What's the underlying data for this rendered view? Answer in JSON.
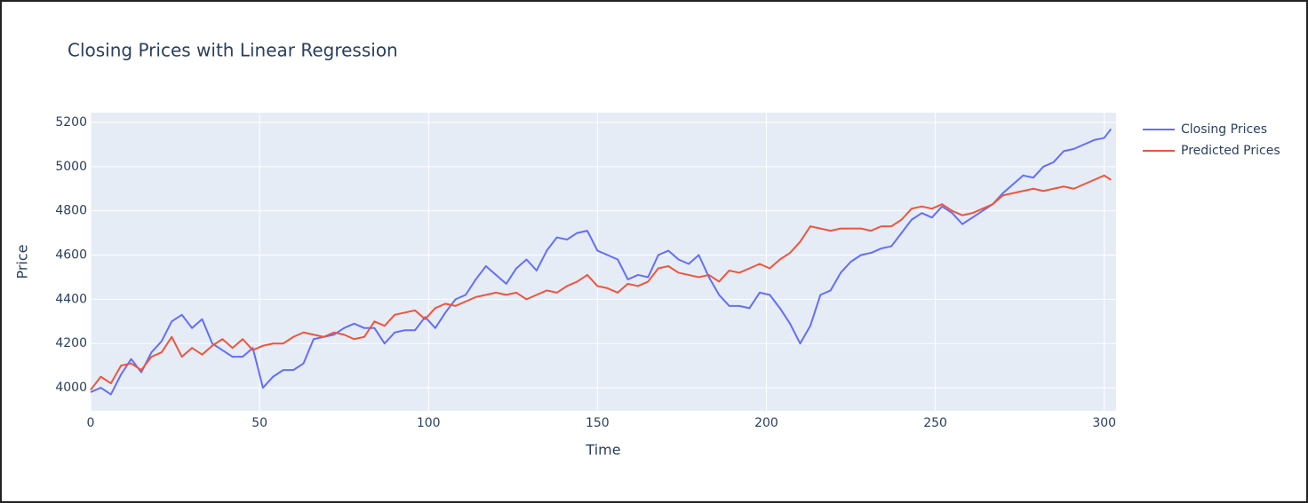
{
  "chart_data": {
    "type": "line",
    "title": "Closing Prices with Linear Regression",
    "x_label": "Time",
    "y_label": "Price",
    "x": [
      0,
      3,
      6,
      9,
      12,
      15,
      18,
      21,
      24,
      27,
      30,
      33,
      36,
      39,
      42,
      45,
      48,
      51,
      54,
      57,
      60,
      63,
      66,
      69,
      72,
      75,
      78,
      81,
      84,
      87,
      90,
      93,
      96,
      99,
      102,
      105,
      108,
      111,
      114,
      117,
      120,
      123,
      126,
      129,
      132,
      135,
      138,
      141,
      144,
      147,
      150,
      153,
      156,
      159,
      162,
      165,
      168,
      171,
      174,
      177,
      180,
      183,
      186,
      189,
      192,
      195,
      198,
      201,
      204,
      207,
      210,
      213,
      216,
      219,
      222,
      225,
      228,
      231,
      234,
      237,
      240,
      243,
      246,
      249,
      252,
      255,
      258,
      261,
      264,
      267,
      270,
      273,
      276,
      279,
      282,
      285,
      288,
      291,
      294,
      297,
      300,
      302
    ],
    "series": [
      {
        "name": "Closing Prices",
        "color": "#636efa",
        "values": [
          3980,
          4000,
          3970,
          4060,
          4130,
          4070,
          4160,
          4210,
          4300,
          4330,
          4270,
          4310,
          4200,
          4170,
          4140,
          4140,
          4180,
          4000,
          4050,
          4080,
          4080,
          4110,
          4220,
          4230,
          4240,
          4270,
          4290,
          4270,
          4270,
          4200,
          4250,
          4260,
          4260,
          4320,
          4270,
          4340,
          4400,
          4420,
          4490,
          4550,
          4510,
          4470,
          4540,
          4580,
          4530,
          4620,
          4680,
          4670,
          4700,
          4710,
          4620,
          4600,
          4580,
          4490,
          4510,
          4500,
          4600,
          4620,
          4580,
          4560,
          4600,
          4500,
          4420,
          4370,
          4370,
          4360,
          4430,
          4420,
          4360,
          4290,
          4200,
          4280,
          4420,
          4440,
          4520,
          4570,
          4600,
          4610,
          4630,
          4640,
          4700,
          4760,
          4790,
          4770,
          4820,
          4790,
          4740,
          4770,
          4800,
          4830,
          4880,
          4920,
          4960,
          4950,
          5000,
          5020,
          5070,
          5080,
          5100,
          5120,
          5130,
          5170
        ]
      },
      {
        "name": "Predicted Prices",
        "color": "#ef553b",
        "values": [
          3990,
          4050,
          4020,
          4100,
          4110,
          4080,
          4140,
          4160,
          4230,
          4140,
          4180,
          4150,
          4190,
          4220,
          4180,
          4220,
          4170,
          4190,
          4200,
          4200,
          4230,
          4250,
          4240,
          4230,
          4250,
          4240,
          4220,
          4230,
          4300,
          4280,
          4330,
          4340,
          4350,
          4310,
          4360,
          4380,
          4370,
          4390,
          4410,
          4420,
          4430,
          4420,
          4430,
          4400,
          4420,
          4440,
          4430,
          4460,
          4480,
          4510,
          4460,
          4450,
          4430,
          4470,
          4460,
          4480,
          4540,
          4550,
          4520,
          4510,
          4500,
          4510,
          4480,
          4530,
          4520,
          4540,
          4560,
          4540,
          4580,
          4610,
          4660,
          4730,
          4720,
          4710,
          4720,
          4720,
          4720,
          4710,
          4730,
          4730,
          4760,
          4810,
          4820,
          4810,
          4830,
          4800,
          4780,
          4790,
          4810,
          4830,
          4870,
          4880,
          4890,
          4900,
          4890,
          4900,
          4910,
          4900,
          4920,
          4940,
          4960,
          4940
        ]
      }
    ],
    "xlim": [
      0,
      303.5
    ],
    "ylim": [
      3896,
      5244
    ],
    "xticks": [
      0,
      50,
      100,
      150,
      200,
      250,
      300
    ],
    "yticks": [
      4000,
      4200,
      4400,
      4600,
      4800,
      5000,
      5200
    ],
    "grid": true,
    "legend": "right"
  }
}
